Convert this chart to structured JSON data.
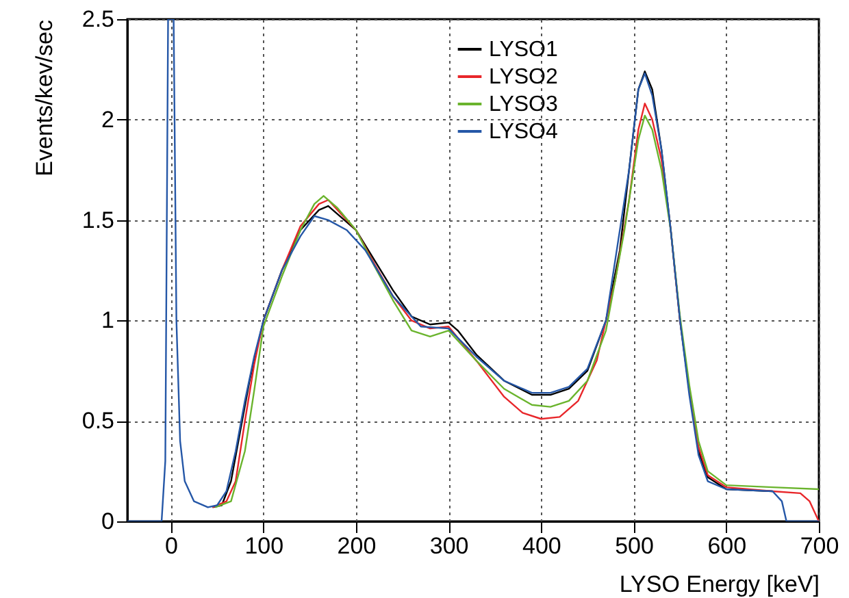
{
  "chart_data": {
    "type": "line",
    "xlabel": "LYSO Energy [keV]",
    "ylabel": "Events/kev/sec",
    "xlim": [
      -47,
      700
    ],
    "xticks": [
      0,
      100,
      200,
      300,
      400,
      500,
      600,
      700
    ],
    "ylim": [
      0,
      2.5
    ],
    "yticks": [
      0,
      0.5,
      1,
      1.5,
      2,
      2.5
    ],
    "grid": true,
    "legend": "top",
    "series": [
      {
        "name": "LYSO1",
        "color": "#000000",
        "x": [
          45,
          55,
          65,
          75,
          85,
          100,
          120,
          140,
          160,
          170,
          180,
          200,
          220,
          240,
          260,
          280,
          300,
          310,
          330,
          360,
          390,
          410,
          430,
          450,
          470,
          485,
          495,
          505,
          512,
          520,
          530,
          540,
          550,
          560,
          570,
          580,
          600,
          650
        ],
        "values": [
          0.07,
          0.08,
          0.2,
          0.45,
          0.7,
          1.0,
          1.25,
          1.45,
          1.55,
          1.57,
          1.53,
          1.45,
          1.3,
          1.15,
          1.02,
          0.98,
          0.99,
          0.95,
          0.83,
          0.7,
          0.63,
          0.63,
          0.66,
          0.75,
          1.0,
          1.35,
          1.75,
          2.15,
          2.24,
          2.15,
          1.85,
          1.45,
          1.0,
          0.65,
          0.35,
          0.22,
          0.16,
          0.15
        ]
      },
      {
        "name": "LYSO2",
        "color": "#e8262a",
        "x": [
          45,
          60,
          70,
          80,
          90,
          100,
          120,
          140,
          160,
          170,
          180,
          200,
          220,
          240,
          260,
          280,
          300,
          330,
          360,
          380,
          400,
          420,
          440,
          460,
          480,
          495,
          505,
          512,
          520,
          530,
          540,
          550,
          560,
          570,
          580,
          600,
          650,
          680,
          690,
          700
        ],
        "values": [
          0.07,
          0.1,
          0.2,
          0.5,
          0.78,
          1.0,
          1.25,
          1.47,
          1.58,
          1.6,
          1.55,
          1.45,
          1.28,
          1.12,
          1.0,
          0.96,
          0.97,
          0.8,
          0.62,
          0.54,
          0.51,
          0.52,
          0.6,
          0.8,
          1.2,
          1.6,
          1.95,
          2.08,
          2.0,
          1.8,
          1.45,
          1.0,
          0.66,
          0.37,
          0.23,
          0.17,
          0.15,
          0.14,
          0.1,
          0
        ]
      },
      {
        "name": "LYSO3",
        "color": "#6ab42d",
        "x": [
          48,
          65,
          80,
          90,
          100,
          120,
          140,
          155,
          165,
          180,
          200,
          220,
          240,
          260,
          280,
          300,
          330,
          360,
          390,
          410,
          430,
          450,
          470,
          490,
          505,
          512,
          520,
          530,
          540,
          550,
          560,
          570,
          580,
          600,
          650,
          700
        ],
        "values": [
          0.07,
          0.1,
          0.35,
          0.65,
          0.97,
          1.22,
          1.45,
          1.58,
          1.62,
          1.56,
          1.45,
          1.27,
          1.1,
          0.95,
          0.92,
          0.95,
          0.8,
          0.66,
          0.58,
          0.57,
          0.6,
          0.7,
          0.95,
          1.45,
          1.9,
          2.02,
          1.95,
          1.75,
          1.45,
          1.02,
          0.68,
          0.4,
          0.25,
          0.18,
          0.17,
          0.16
        ]
      },
      {
        "name": "LYSO4",
        "color": "#2557a7",
        "x": [
          -47,
          -10,
          -6,
          -3,
          3,
          6,
          10,
          15,
          25,
          40,
          50,
          60,
          70,
          80,
          90,
          100,
          120,
          140,
          155,
          170,
          190,
          210,
          240,
          270,
          300,
          330,
          360,
          390,
          410,
          430,
          450,
          470,
          495,
          505,
          512,
          520,
          530,
          540,
          550,
          560,
          570,
          580,
          600,
          650,
          660,
          665,
          700
        ],
        "values": [
          0,
          0,
          0.3,
          2.5,
          2.5,
          1.0,
          0.4,
          0.2,
          0.1,
          0.07,
          0.08,
          0.15,
          0.35,
          0.6,
          0.82,
          1.0,
          1.25,
          1.42,
          1.52,
          1.5,
          1.45,
          1.35,
          1.12,
          0.97,
          0.96,
          0.82,
          0.7,
          0.64,
          0.64,
          0.67,
          0.76,
          1.0,
          1.75,
          2.15,
          2.23,
          2.12,
          1.85,
          1.45,
          1.0,
          0.63,
          0.33,
          0.2,
          0.16,
          0.15,
          0.1,
          0,
          0
        ]
      }
    ]
  }
}
